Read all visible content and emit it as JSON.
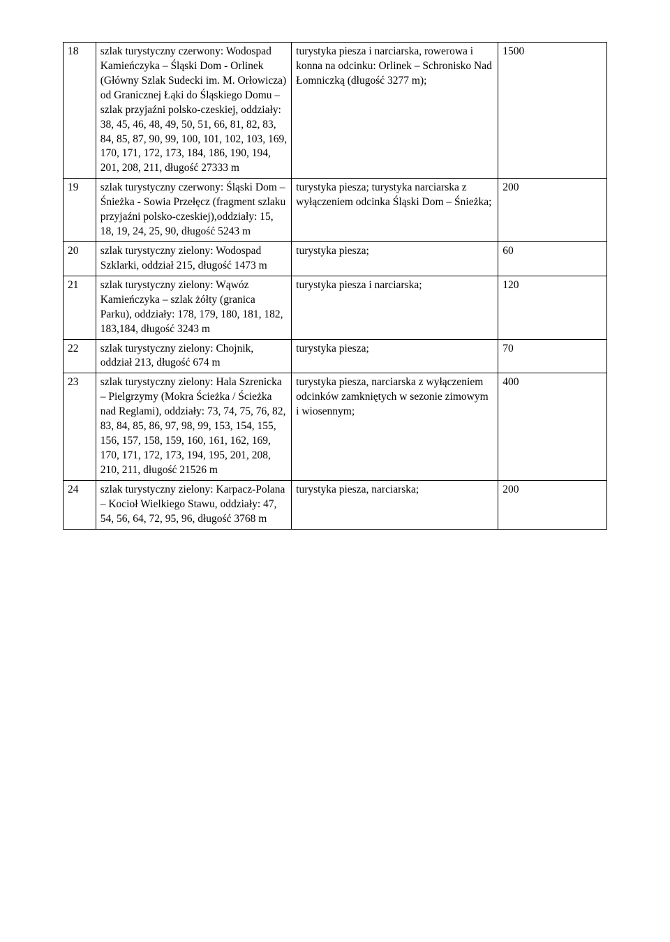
{
  "table": {
    "columns": [
      "num",
      "trail",
      "activity",
      "value"
    ],
    "col_widths_pct": [
      6,
      36,
      38,
      20
    ],
    "border_color": "#000000",
    "background_color": "#ffffff",
    "font_family": "Times New Roman",
    "font_size_pt": 12,
    "text_color": "#000000",
    "rows": [
      {
        "num": "18",
        "trail": "szlak turystyczny czerwony: Wodospad Kamieńczyka – Śląski Dom - Orlinek\n(Główny Szlak Sudecki im. M. Orłowicza)\nod Granicznej Łąki do Śląskiego Domu – szlak przyjaźni polsko-czeskiej, oddziały: 38, 45, 46, 48, 49, 50, 51, 66, 81, 82, 83, 84, 85, 87, 90, 99, 100, 101, 102, 103, 169, 170, 171, 172, 173, 184, 186, 190, 194, 201, 208, 211, długość 27333 m",
        "activity": "turystyka piesza i narciarska, rowerowa i konna na odcinku: Orlinek – Schronisko Nad Łomniczką (długość 3277 m);",
        "value": "1500"
      },
      {
        "num": "19",
        "trail": "szlak turystyczny czerwony: Śląski Dom – Śnieżka - Sowia Przełęcz (fragment szlaku przyjaźni polsko-czeskiej),oddziały: 15, 18, 19, 24, 25, 90, długość 5243 m",
        "activity": "turystyka piesza; turystyka narciarska z wyłączeniem odcinka Śląski Dom – Śnieżka;",
        "value": "200"
      },
      {
        "num": "20",
        "trail": "szlak turystyczny zielony: Wodospad Szklarki, oddział 215, długość 1473 m",
        "activity": "turystyka piesza;",
        "value": "60"
      },
      {
        "num": "21",
        "trail": "szlak turystyczny zielony: Wąwóz Kamieńczyka – szlak żółty  (granica Parku), oddziały: 178, 179, 180, 181, 182, 183,184, długość 3243 m",
        "activity": "turystyka piesza i narciarska;",
        "value": "120"
      },
      {
        "num": "22",
        "trail": "szlak turystyczny zielony: Chojnik,  oddział 213, długość 674 m",
        "activity": "turystyka piesza;",
        "value": "70"
      },
      {
        "num": "23",
        "trail": "szlak turystyczny zielony: Hala Szrenicka – Pielgrzymy (Mokra Ścieżka / Ścieżka nad Reglami), oddziały: 73, 74, 75, 76, 82, 83, 84, 85, 86, 97, 98, 99, 153, 154, 155, 156, 157, 158, 159, 160, 161, 162, 169, 170, 171, 172, 173, 194, 195, 201, 208, 210, 211, długość 21526 m",
        "activity": "turystyka piesza, narciarska z wyłączeniem odcinków zamkniętych w sezonie zimowym i wiosennym;",
        "value": "400"
      },
      {
        "num": "24",
        "trail": "szlak turystyczny zielony: Karpacz-Polana – Kocioł Wielkiego Stawu, oddziały: 47, 54, 56, 64, 72, 95, 96, długość 3768 m",
        "activity": "turystyka piesza, narciarska;",
        "value": "200"
      }
    ]
  }
}
